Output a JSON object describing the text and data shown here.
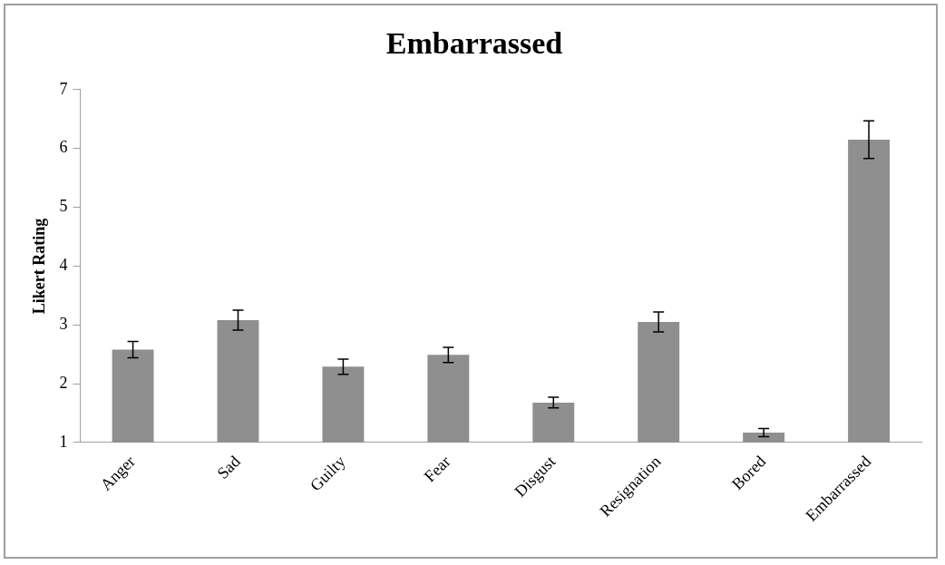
{
  "chart_data": {
    "type": "bar",
    "title": "Embarrassed",
    "ylabel": "Likert Rating",
    "categories": [
      "Anger",
      "Sad",
      "Guilty",
      "Fear",
      "Disgust",
      "Resignation",
      "Bored",
      "Embarrassed"
    ],
    "values": [
      2.58,
      3.08,
      2.29,
      2.49,
      1.68,
      3.05,
      1.17,
      6.15
    ],
    "errors": [
      0.14,
      0.17,
      0.13,
      0.13,
      0.09,
      0.17,
      0.07,
      0.32
    ],
    "color": "#8f8f8f",
    "ylim": [
      1,
      7
    ],
    "yticks": [
      1,
      2,
      3,
      4,
      5,
      6,
      7
    ],
    "grid": false,
    "legend": false
  }
}
